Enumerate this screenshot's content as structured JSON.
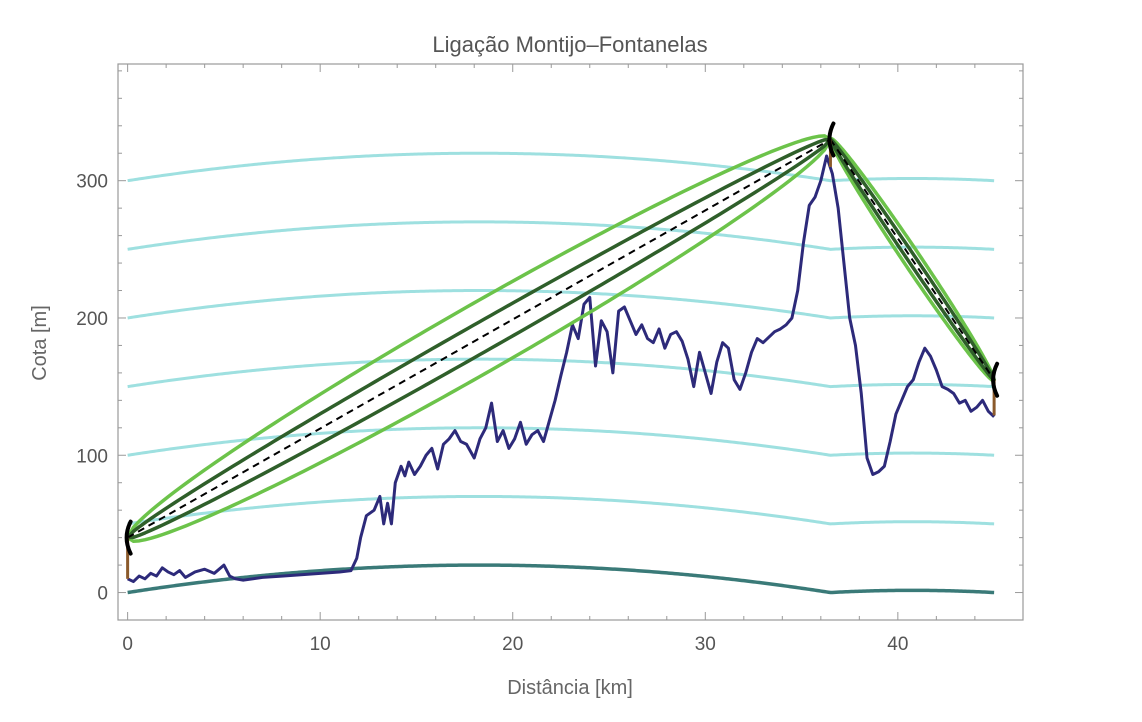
{
  "chart_data": {
    "type": "line",
    "title": "Ligação Montijo–Fontanelas",
    "xlabel": "Distância [km]",
    "ylabel": "Cota [m]",
    "xlim": [
      -0.5,
      46.5
    ],
    "ylim": [
      -20,
      385
    ],
    "x_ticks": [
      0,
      10,
      20,
      30,
      40
    ],
    "y_ticks": [
      0,
      100,
      200,
      300
    ],
    "grid": false,
    "colors": {
      "terrain": "#2d2a7a",
      "earth_curve": "#3a7a78",
      "earth_curve_offsets": "#9ee0e0",
      "los": "#000000",
      "fresnel_inner": "#2f5f2a",
      "fresnel_outer": "#6cc34a",
      "mast": "#8b5a2b"
    },
    "stations": [
      {
        "x": 0,
        "ground": 10,
        "antenna": 40
      },
      {
        "x": 36.5,
        "ground": 310,
        "antenna": 330
      },
      {
        "x": 45,
        "ground": 129,
        "antenna": 155
      }
    ],
    "earth_curve": {
      "segments": [
        {
          "x_start": 0,
          "x_end": 36.5,
          "y_start": 0,
          "y_end": 0,
          "bulge": 20
        },
        {
          "x_start": 36.5,
          "x_end": 45,
          "y_start": 0,
          "y_end": 0,
          "bulge": 1.6
        }
      ],
      "offsets": [
        0,
        50,
        100,
        150,
        200,
        250,
        300
      ]
    },
    "fresnel_zones": {
      "inner_radius": [
        12,
        5
      ],
      "outer_radius": [
        28,
        11
      ]
    },
    "terrain": {
      "x": [
        0,
        0.3,
        0.6,
        0.9,
        1.2,
        1.5,
        1.8,
        2.1,
        2.4,
        2.7,
        3.0,
        3.5,
        4.0,
        4.5,
        5.0,
        5.3,
        5.6,
        6.0,
        7,
        8,
        9,
        10,
        11,
        11.6,
        11.9,
        12.1,
        12.4,
        12.8,
        13.1,
        13.3,
        13.5,
        13.7,
        13.9,
        14.2,
        14.4,
        14.6,
        14.9,
        15.2,
        15.5,
        15.8,
        16.1,
        16.4,
        16.7,
        17.0,
        17.3,
        17.6,
        18.0,
        18.3,
        18.6,
        18.9,
        19.2,
        19.5,
        19.8,
        20.1,
        20.4,
        20.7,
        21.0,
        21.3,
        21.6,
        21.9,
        22.2,
        22.5,
        22.8,
        23.1,
        23.4,
        23.7,
        24.0,
        24.3,
        24.6,
        24.9,
        25.2,
        25.5,
        25.8,
        26.1,
        26.4,
        26.7,
        27.0,
        27.3,
        27.6,
        27.9,
        28.2,
        28.5,
        28.8,
        29.1,
        29.4,
        29.7,
        30.0,
        30.3,
        30.6,
        30.9,
        31.2,
        31.5,
        31.8,
        32.1,
        32.4,
        32.7,
        33.0,
        33.3,
        33.6,
        33.9,
        34.2,
        34.5,
        34.8,
        35.1,
        35.4,
        35.7,
        36.0,
        36.3,
        36.6,
        36.9,
        37.2,
        37.5,
        37.8,
        38.1,
        38.4,
        38.7,
        39.0,
        39.3,
        39.6,
        39.9,
        40.2,
        40.5,
        40.8,
        41.1,
        41.4,
        41.7,
        42.0,
        42.3,
        42.6,
        42.9,
        43.2,
        43.5,
        43.8,
        44.1,
        44.4,
        44.7,
        45.0
      ],
      "y": [
        10,
        8,
        12,
        10,
        14,
        12,
        18,
        15,
        13,
        16,
        11,
        15,
        17,
        14,
        20,
        12,
        10,
        9,
        11,
        12,
        13,
        14,
        15,
        16,
        25,
        40,
        56,
        60,
        70,
        50,
        65,
        50,
        80,
        92,
        85,
        95,
        86,
        92,
        100,
        105,
        90,
        108,
        112,
        118,
        110,
        108,
        98,
        112,
        120,
        138,
        110,
        118,
        105,
        112,
        124,
        108,
        115,
        118,
        110,
        125,
        140,
        158,
        175,
        195,
        185,
        210,
        215,
        165,
        198,
        190,
        160,
        205,
        208,
        198,
        188,
        195,
        185,
        182,
        192,
        178,
        188,
        190,
        183,
        170,
        150,
        175,
        160,
        145,
        168,
        182,
        178,
        155,
        148,
        160,
        175,
        185,
        182,
        186,
        190,
        192,
        195,
        200,
        220,
        255,
        282,
        288,
        300,
        318,
        305,
        280,
        240,
        200,
        180,
        145,
        98,
        86,
        88,
        92,
        110,
        130,
        140,
        150,
        155,
        168,
        178,
        172,
        162,
        150,
        148,
        145,
        138,
        140,
        132,
        135,
        140,
        132,
        128
      ]
    }
  }
}
